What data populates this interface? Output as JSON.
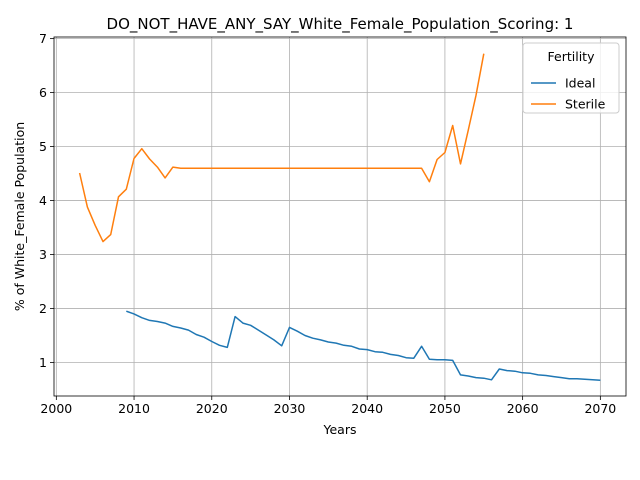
{
  "chart_data": {
    "type": "line",
    "title": "DO_NOT_HAVE_ANY_SAY_White_Female_Population_Scoring: 1",
    "xlabel": "Years",
    "ylabel": "% of White_Female Population",
    "xlim": [
      1999.7,
      2073.3
    ],
    "ylim": [
      0.38,
      7.03
    ],
    "xticks": [
      2000,
      2010,
      2020,
      2030,
      2040,
      2050,
      2060,
      2070
    ],
    "yticks": [
      1,
      2,
      3,
      4,
      5,
      6,
      7
    ],
    "grid": true,
    "legend": {
      "title": "Fertility",
      "position": "top-right"
    },
    "series": [
      {
        "name": "Ideal",
        "color": "#1f77b4",
        "x": [
          2009,
          2010,
          2011,
          2012,
          2013,
          2014,
          2015,
          2016,
          2017,
          2018,
          2019,
          2020,
          2021,
          2022,
          2023,
          2024,
          2025,
          2026,
          2027,
          2028,
          2029,
          2030,
          2031,
          2032,
          2033,
          2034,
          2035,
          2036,
          2037,
          2038,
          2039,
          2040,
          2041,
          2042,
          2043,
          2044,
          2045,
          2046,
          2047,
          2048,
          2049,
          2050,
          2051,
          2052,
          2053,
          2054,
          2055,
          2056,
          2057,
          2058,
          2059,
          2060,
          2061,
          2062,
          2063,
          2064,
          2065,
          2066,
          2067,
          2068,
          2069,
          2070
        ],
        "y": [
          1.95,
          1.9,
          1.83,
          1.78,
          1.76,
          1.73,
          1.67,
          1.64,
          1.6,
          1.52,
          1.47,
          1.39,
          1.32,
          1.28,
          1.85,
          1.73,
          1.69,
          1.6,
          1.51,
          1.42,
          1.31,
          1.65,
          1.58,
          1.5,
          1.45,
          1.42,
          1.38,
          1.36,
          1.32,
          1.3,
          1.25,
          1.24,
          1.2,
          1.19,
          1.15,
          1.13,
          1.09,
          1.08,
          1.3,
          1.06,
          1.05,
          1.05,
          1.04,
          0.77,
          0.75,
          0.72,
          0.71,
          0.68,
          0.88,
          0.85,
          0.84,
          0.81,
          0.8,
          0.77,
          0.76,
          0.74,
          0.72,
          0.7,
          0.7,
          0.69,
          0.68,
          0.67
        ]
      },
      {
        "name": "Sterile",
        "color": "#ff7f0e",
        "x": [
          2003,
          2004,
          2005,
          2006,
          2007,
          2008,
          2009,
          2010,
          2011,
          2012,
          2013,
          2014,
          2015,
          2016,
          2017,
          2018,
          2019,
          2020,
          2025,
          2030,
          2035,
          2040,
          2045,
          2047,
          2048,
          2049,
          2050,
          2051,
          2052,
          2053,
          2054,
          2055
        ],
        "y": [
          4.51,
          3.88,
          3.54,
          3.24,
          3.37,
          4.07,
          4.21,
          4.78,
          4.96,
          4.77,
          4.62,
          4.42,
          4.62,
          4.6,
          4.6,
          4.6,
          4.6,
          4.6,
          4.6,
          4.6,
          4.6,
          4.6,
          4.6,
          4.6,
          4.35,
          4.76,
          4.89,
          5.39,
          4.68,
          5.3,
          5.95,
          6.72
        ]
      }
    ]
  }
}
